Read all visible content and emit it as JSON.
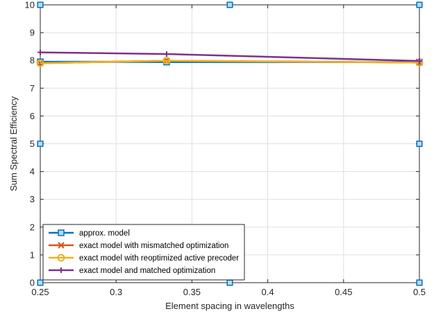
{
  "chart_data": {
    "type": "line",
    "title": "",
    "xlabel": "Element spacing in wavelengths",
    "ylabel": "Sum Spectral Efficiency",
    "xlim": [
      0.25,
      0.5
    ],
    "ylim": [
      0,
      10
    ],
    "xticks": [
      0.25,
      0.3,
      0.35,
      0.4,
      0.45,
      0.5
    ],
    "xtick_labels": [
      "0.25",
      "0.3",
      "0.35",
      "0.4",
      "0.45",
      "0.5"
    ],
    "yticks": [
      0,
      1,
      2,
      3,
      4,
      5,
      6,
      7,
      8,
      9,
      10
    ],
    "ytick_labels": [
      "0",
      "1",
      "2",
      "3",
      "4",
      "5",
      "6",
      "7",
      "8",
      "9",
      "10"
    ],
    "grid": true,
    "legend_position": "bottom-left",
    "series": [
      {
        "name": "approx. model",
        "color": "#0072BD",
        "marker": "square",
        "x": [
          0.25,
          0.3333,
          0.5
        ],
        "y": [
          7.95,
          7.94,
          7.94
        ]
      },
      {
        "name": "exact model with mismatched optimization",
        "color": "#D95319",
        "marker": "x",
        "x": [
          0.25,
          0.3333,
          0.5
        ],
        "y": [
          7.9,
          7.99,
          7.92
        ]
      },
      {
        "name": "exact model with reoptimized active precoder",
        "color": "#EDB120",
        "marker": "circle",
        "x": [
          0.25,
          0.3333,
          0.5
        ],
        "y": [
          7.9,
          7.99,
          7.92
        ]
      },
      {
        "name": "exact model and matched optimization",
        "color": "#7E2F8E",
        "marker": "plus",
        "x": [
          0.25,
          0.3333,
          0.5
        ],
        "y": [
          8.29,
          8.23,
          7.98
        ]
      }
    ],
    "extra_markers": {
      "color": "#0072BD",
      "marker": "square",
      "points": [
        [
          0.25,
          10
        ],
        [
          0.375,
          10
        ],
        [
          0.5,
          10
        ],
        [
          0.25,
          5
        ],
        [
          0.5,
          5
        ],
        [
          0.25,
          0
        ],
        [
          0.375,
          0
        ],
        [
          0.5,
          0
        ]
      ]
    }
  }
}
